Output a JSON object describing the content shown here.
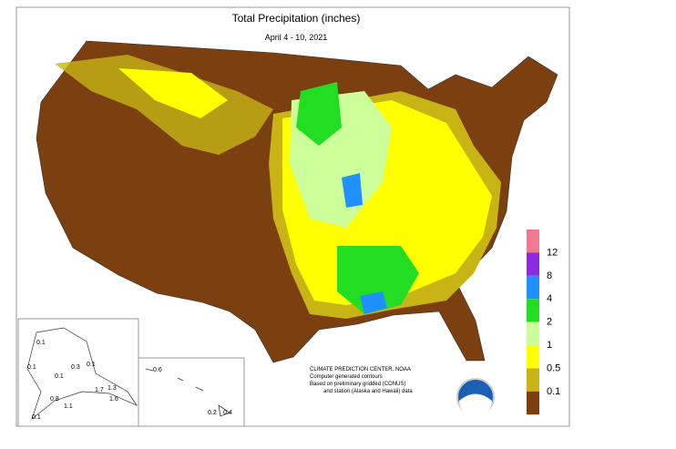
{
  "header": {
    "title": "Total Precipitation (inches)",
    "subtitle": "April 4 - 10, 2021"
  },
  "legend": {
    "colors": [
      "#f07890",
      "#8a2be2",
      "#1e90ff",
      "#22dd22",
      "#ccff99",
      "#ffff00",
      "#c8b414",
      "#7b3f10"
    ],
    "labels": [
      12,
      8,
      4,
      2,
      1,
      0.5,
      0.1
    ]
  },
  "alaska": {
    "labels": [
      "0.1",
      "0.1",
      "0.3",
      "0.1",
      "0.1",
      "1.7",
      "1.3",
      "0.8",
      "1.6",
      "1.1",
      "0.1"
    ]
  },
  "hawaii": {
    "labels": [
      "0.6",
      "0.2",
      "0.4"
    ]
  },
  "footer": {
    "lines": [
      "CLIMATE PREDICTION CENTER, NOAA",
      "Computer generated contours",
      "Based on preliminary gridded (CONUS)",
      "and station (Alaska and Hawaii) data"
    ]
  }
}
